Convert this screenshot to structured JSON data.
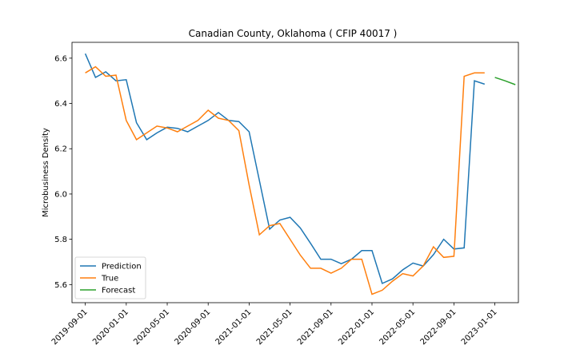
{
  "chart_data": {
    "type": "line",
    "title": "Canadian County, Oklahoma ( CFIP 40017 )",
    "xlabel": "",
    "ylabel": "Microbusiness Density",
    "ylim": [
      5.52,
      6.67
    ],
    "xlim": [
      "2019-08-01",
      "2023-03-01"
    ],
    "x_ticks": [
      "2019-09-01",
      "2020-01-01",
      "2020-05-01",
      "2020-09-01",
      "2021-01-01",
      "2021-05-01",
      "2021-09-01",
      "2022-01-01",
      "2022-05-01",
      "2022-09-01",
      "2023-01-01"
    ],
    "y_ticks": [
      5.6,
      5.8,
      6.0,
      6.2,
      6.4,
      6.6
    ],
    "y_tick_labels": [
      "5.6",
      "5.8",
      "6.0",
      "6.2",
      "6.4",
      "6.6"
    ],
    "grid": false,
    "legend_position": "lower-left",
    "series": [
      {
        "name": "Prediction",
        "color": "#1f77b4",
        "points": [
          [
            "2019-09-01",
            6.62
          ],
          [
            "2019-10-01",
            6.515
          ],
          [
            "2019-11-01",
            6.54
          ],
          [
            "2019-12-01",
            6.5
          ],
          [
            "2020-01-01",
            6.505
          ],
          [
            "2020-02-01",
            6.315
          ],
          [
            "2020-03-01",
            6.24
          ],
          [
            "2020-04-01",
            6.27
          ],
          [
            "2020-05-01",
            6.295
          ],
          [
            "2020-06-01",
            6.29
          ],
          [
            "2020-07-01",
            6.275
          ],
          [
            "2020-08-01",
            6.3
          ],
          [
            "2020-09-01",
            6.325
          ],
          [
            "2020-10-01",
            6.36
          ],
          [
            "2020-11-01",
            6.325
          ],
          [
            "2020-12-01",
            6.32
          ],
          [
            "2021-01-01",
            6.275
          ],
          [
            "2021-02-01",
            6.06
          ],
          [
            "2021-03-01",
            5.845
          ],
          [
            "2021-04-01",
            5.885
          ],
          [
            "2021-05-01",
            5.897
          ],
          [
            "2021-06-01",
            5.85
          ],
          [
            "2021-07-01",
            5.782
          ],
          [
            "2021-08-01",
            5.712
          ],
          [
            "2021-09-01",
            5.712
          ],
          [
            "2021-10-01",
            5.692
          ],
          [
            "2021-11-01",
            5.712
          ],
          [
            "2021-12-01",
            5.75
          ],
          [
            "2022-01-01",
            5.75
          ],
          [
            "2022-02-01",
            5.605
          ],
          [
            "2022-03-01",
            5.625
          ],
          [
            "2022-04-01",
            5.665
          ],
          [
            "2022-05-01",
            5.695
          ],
          [
            "2022-06-01",
            5.682
          ],
          [
            "2022-07-01",
            5.732
          ],
          [
            "2022-08-01",
            5.8
          ],
          [
            "2022-09-01",
            5.757
          ],
          [
            "2022-10-01",
            5.762
          ],
          [
            "2022-11-01",
            6.5
          ],
          [
            "2022-12-01",
            6.485
          ]
        ]
      },
      {
        "name": "True",
        "color": "#ff7f0e",
        "points": [
          [
            "2019-09-01",
            6.535
          ],
          [
            "2019-10-01",
            6.562
          ],
          [
            "2019-11-01",
            6.52
          ],
          [
            "2019-12-01",
            6.525
          ],
          [
            "2020-01-01",
            6.325
          ],
          [
            "2020-02-01",
            6.24
          ],
          [
            "2020-03-01",
            6.27
          ],
          [
            "2020-04-01",
            6.3
          ],
          [
            "2020-05-01",
            6.292
          ],
          [
            "2020-06-01",
            6.275
          ],
          [
            "2020-07-01",
            6.3
          ],
          [
            "2020-08-01",
            6.325
          ],
          [
            "2020-09-01",
            6.37
          ],
          [
            "2020-10-01",
            6.335
          ],
          [
            "2020-11-01",
            6.325
          ],
          [
            "2020-12-01",
            6.28
          ],
          [
            "2021-01-01",
            6.04
          ],
          [
            "2021-02-01",
            5.82
          ],
          [
            "2021-03-01",
            5.86
          ],
          [
            "2021-04-01",
            5.87
          ],
          [
            "2021-05-01",
            5.8
          ],
          [
            "2021-06-01",
            5.73
          ],
          [
            "2021-07-01",
            5.672
          ],
          [
            "2021-08-01",
            5.672
          ],
          [
            "2021-09-01",
            5.65
          ],
          [
            "2021-10-01",
            5.672
          ],
          [
            "2021-11-01",
            5.712
          ],
          [
            "2021-12-01",
            5.712
          ],
          [
            "2022-01-01",
            5.557
          ],
          [
            "2022-02-01",
            5.575
          ],
          [
            "2022-03-01",
            5.615
          ],
          [
            "2022-04-01",
            5.648
          ],
          [
            "2022-05-01",
            5.638
          ],
          [
            "2022-06-01",
            5.682
          ],
          [
            "2022-07-01",
            5.767
          ],
          [
            "2022-08-01",
            5.72
          ],
          [
            "2022-09-01",
            5.725
          ],
          [
            "2022-10-01",
            6.52
          ],
          [
            "2022-11-01",
            6.535
          ],
          [
            "2022-12-01",
            6.535
          ]
        ]
      },
      {
        "name": "Forecast",
        "color": "#2ca02c",
        "points": [
          [
            "2023-01-01",
            6.515
          ],
          [
            "2023-02-01",
            6.5
          ],
          [
            "2023-03-01",
            6.483
          ]
        ]
      }
    ]
  }
}
